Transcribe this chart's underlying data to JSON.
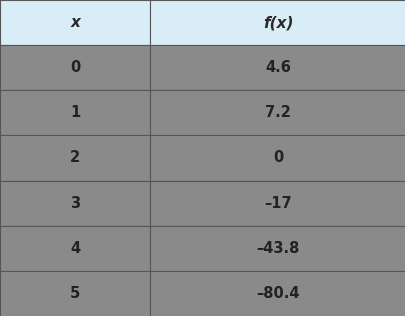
{
  "col1_header": "x",
  "col2_header": "f(x)",
  "rows": [
    [
      "0",
      "4.6"
    ],
    [
      "1",
      "7.2"
    ],
    [
      "2",
      "0"
    ],
    [
      "3",
      "–17"
    ],
    [
      "4",
      "–43.8"
    ],
    [
      "5",
      "–80.4"
    ]
  ],
  "header_bg": "#d9edf7",
  "row_bg": "#8a8a8a",
  "border_color": "#555555",
  "header_text_color": "#2a2a2a",
  "row_text_color": "#222222",
  "col_split": 0.37,
  "header_fontsize": 11,
  "cell_fontsize": 10.5
}
